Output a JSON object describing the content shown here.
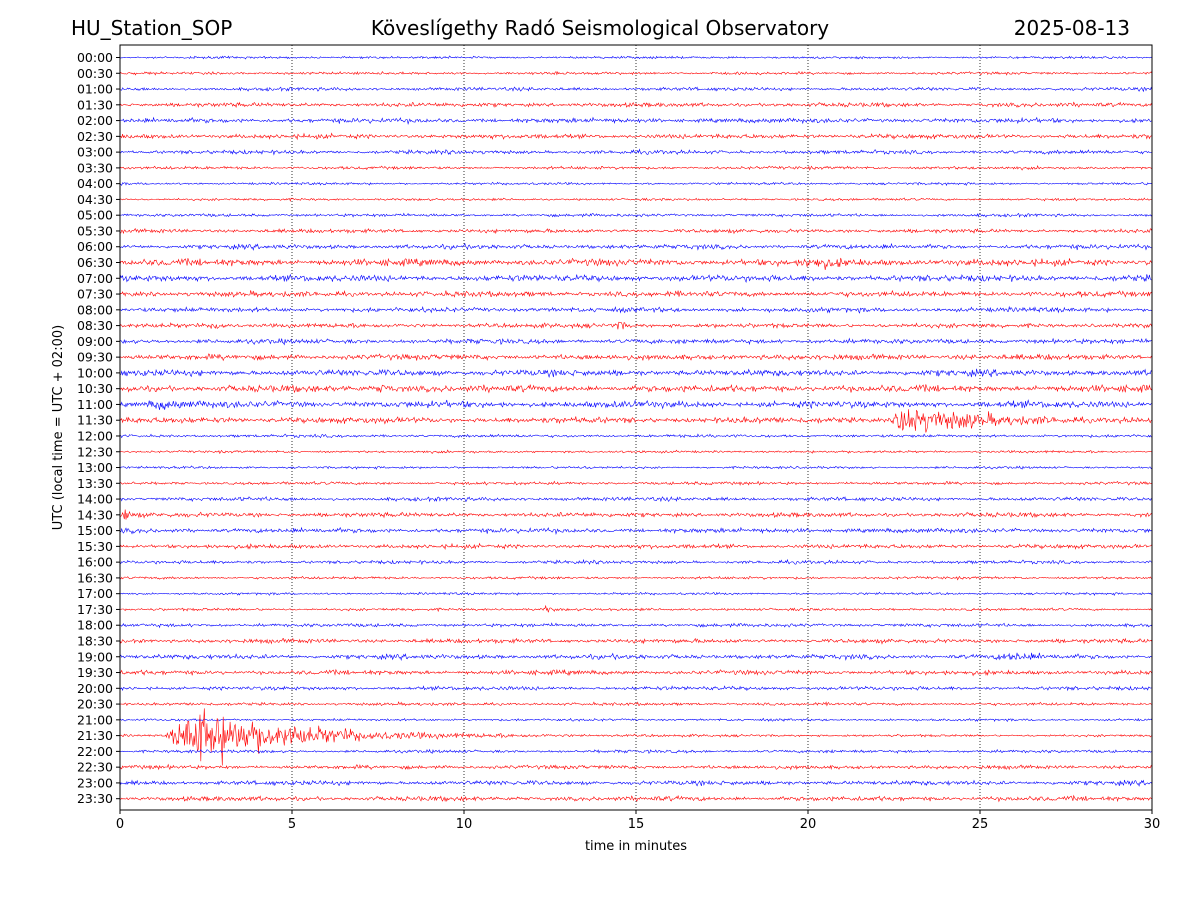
{
  "header": {
    "station": "HU_Station_SOP",
    "observatory": "Köveslígethy Radó Seismological Observatory",
    "date": "2025-08-13"
  },
  "chart_data": {
    "type": "line",
    "title": "Köveslígethy Radó Seismological Observatory",
    "xlabel": "time in minutes",
    "ylabel": "UTC (local time = UTC + 02:00)",
    "xlim": [
      0,
      30
    ],
    "xticks": [
      0,
      5,
      10,
      15,
      20,
      25,
      30
    ],
    "grid": "vertical dotted lines at x ticks",
    "trace_colors": [
      "#0000ff",
      "#ff0000"
    ],
    "rows": [
      {
        "label": "00:00",
        "color": "#0000ff"
      },
      {
        "label": "00:30",
        "color": "#ff0000"
      },
      {
        "label": "01:00",
        "color": "#0000ff"
      },
      {
        "label": "01:30",
        "color": "#ff0000"
      },
      {
        "label": "02:00",
        "color": "#0000ff"
      },
      {
        "label": "02:30",
        "color": "#ff0000"
      },
      {
        "label": "03:00",
        "color": "#0000ff"
      },
      {
        "label": "03:30",
        "color": "#ff0000"
      },
      {
        "label": "04:00",
        "color": "#0000ff"
      },
      {
        "label": "04:30",
        "color": "#ff0000"
      },
      {
        "label": "05:00",
        "color": "#0000ff"
      },
      {
        "label": "05:30",
        "color": "#ff0000"
      },
      {
        "label": "06:00",
        "color": "#0000ff"
      },
      {
        "label": "06:30",
        "color": "#ff0000"
      },
      {
        "label": "07:00",
        "color": "#0000ff"
      },
      {
        "label": "07:30",
        "color": "#ff0000"
      },
      {
        "label": "08:00",
        "color": "#0000ff"
      },
      {
        "label": "08:30",
        "color": "#ff0000"
      },
      {
        "label": "09:00",
        "color": "#0000ff"
      },
      {
        "label": "09:30",
        "color": "#ff0000"
      },
      {
        "label": "10:00",
        "color": "#0000ff"
      },
      {
        "label": "10:30",
        "color": "#ff0000"
      },
      {
        "label": "11:00",
        "color": "#0000ff"
      },
      {
        "label": "11:30",
        "color": "#ff0000"
      },
      {
        "label": "12:00",
        "color": "#0000ff"
      },
      {
        "label": "12:30",
        "color": "#ff0000"
      },
      {
        "label": "13:00",
        "color": "#0000ff"
      },
      {
        "label": "13:30",
        "color": "#ff0000"
      },
      {
        "label": "14:00",
        "color": "#0000ff"
      },
      {
        "label": "14:30",
        "color": "#ff0000"
      },
      {
        "label": "15:00",
        "color": "#0000ff"
      },
      {
        "label": "15:30",
        "color": "#ff0000"
      },
      {
        "label": "16:00",
        "color": "#0000ff"
      },
      {
        "label": "16:30",
        "color": "#ff0000"
      },
      {
        "label": "17:00",
        "color": "#0000ff"
      },
      {
        "label": "17:30",
        "color": "#ff0000"
      },
      {
        "label": "18:00",
        "color": "#0000ff"
      },
      {
        "label": "18:30",
        "color": "#ff0000"
      },
      {
        "label": "19:00",
        "color": "#0000ff"
      },
      {
        "label": "19:30",
        "color": "#ff0000"
      },
      {
        "label": "20:00",
        "color": "#0000ff"
      },
      {
        "label": "20:30",
        "color": "#ff0000"
      },
      {
        "label": "21:00",
        "color": "#0000ff"
      },
      {
        "label": "21:30",
        "color": "#ff0000"
      },
      {
        "label": "22:00",
        "color": "#0000ff"
      },
      {
        "label": "22:30",
        "color": "#ff0000"
      },
      {
        "label": "23:00",
        "color": "#0000ff"
      },
      {
        "label": "23:30",
        "color": "#ff0000"
      }
    ]
  }
}
